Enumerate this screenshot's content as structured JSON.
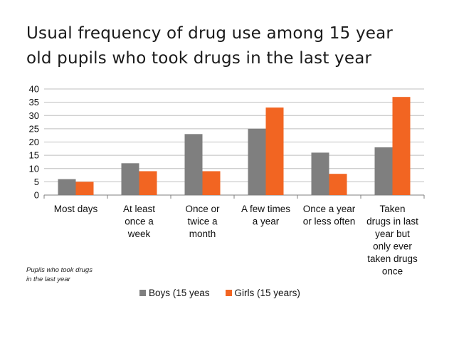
{
  "title_lines": [
    "Usual frequency of drug use among 15 year",
    "old pupils who took drugs in the last year"
  ],
  "note": "Pupils who took drugs in the last year",
  "colors": {
    "boys": "#7f7f7f",
    "girls": "#f26522",
    "grid": "#bfbfbf",
    "axis": "#7f7f7f"
  },
  "chart_data": {
    "type": "bar",
    "title": "Usual frequency of drug use among 15 year old pupils who took drugs in the last year",
    "xlabel": "",
    "ylabel": "",
    "ylim": [
      0,
      40
    ],
    "yticks": [
      0,
      5,
      10,
      15,
      20,
      25,
      30,
      35,
      40
    ],
    "grid": true,
    "legend": "bottom",
    "categories": [
      [
        "Most days"
      ],
      [
        "At least",
        "once a",
        "week"
      ],
      [
        "Once or",
        "twice a",
        "month"
      ],
      [
        "A few times",
        "a year"
      ],
      [
        "Once a year",
        "or less often"
      ],
      [
        "Taken",
        "drugs in last",
        "year but",
        "only ever",
        "taken drugs",
        "once"
      ]
    ],
    "series": [
      {
        "name": "Boys (15 yeas",
        "values": [
          6,
          12,
          23,
          25,
          16,
          18
        ]
      },
      {
        "name": "Girls (15 years)",
        "values": [
          5,
          9,
          9,
          33,
          8,
          37
        ]
      }
    ]
  }
}
